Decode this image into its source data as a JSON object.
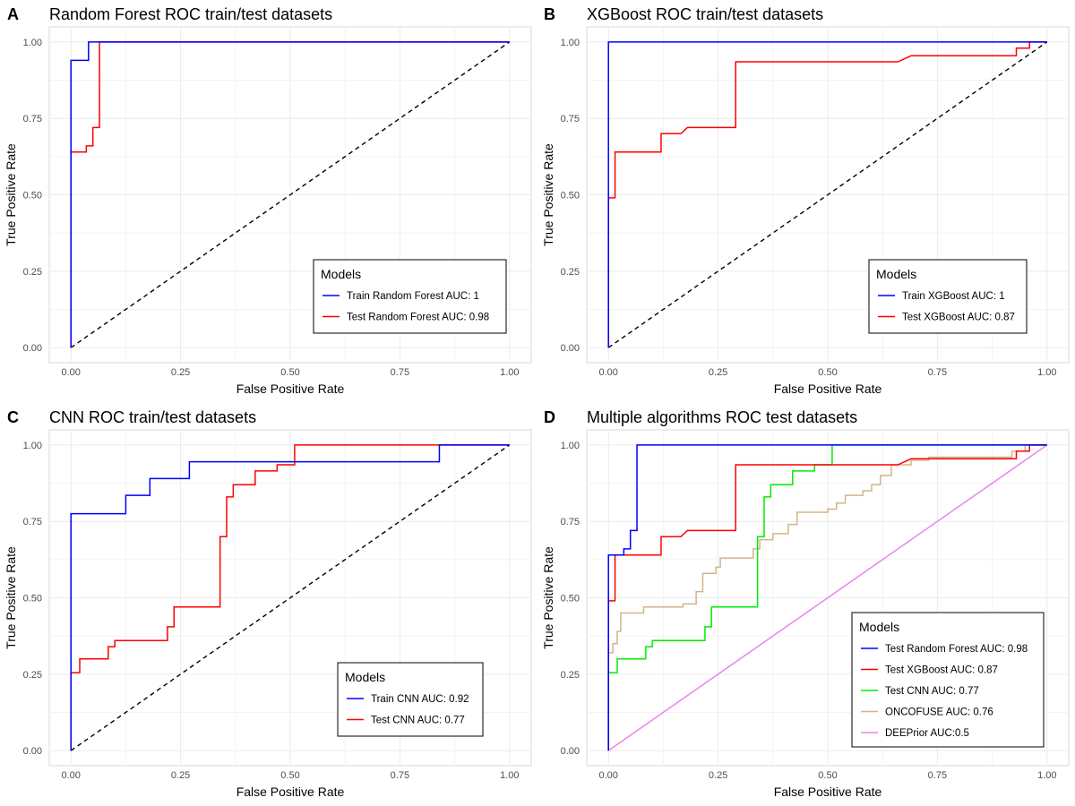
{
  "chart_data": [
    {
      "type": "line",
      "panel_letter": "A",
      "title": "Random Forest ROC train/test datasets",
      "xlabel": "False Positive Rate",
      "ylabel": "True Positive Rate",
      "xlim": [
        0,
        1
      ],
      "ylim": [
        0,
        1
      ],
      "xticks": [
        "0.00",
        "0.25",
        "0.50",
        "0.75",
        "1.00"
      ],
      "yticks": [
        "0.00",
        "0.25",
        "0.50",
        "0.75",
        "1.00"
      ],
      "grid": true,
      "legend_title": "Models",
      "legend_position": "bottom-right",
      "diagonal_reference": true,
      "series": [
        {
          "name": "Train Random Forest  AUC: 1",
          "color": "#0000ff",
          "points": [
            [
              0,
              0
            ],
            [
              0,
              0.94
            ],
            [
              0.04,
              0.94
            ],
            [
              0.04,
              1
            ],
            [
              1,
              1
            ]
          ]
        },
        {
          "name": "Test Random Forest  AUC: 0.98",
          "color": "#ff0000",
          "points": [
            [
              0,
              0
            ],
            [
              0,
              0.64
            ],
            [
              0.035,
              0.64
            ],
            [
              0.035,
              0.66
            ],
            [
              0.05,
              0.66
            ],
            [
              0.05,
              0.72
            ],
            [
              0.065,
              0.72
            ],
            [
              0.065,
              1
            ],
            [
              1,
              1
            ]
          ]
        }
      ]
    },
    {
      "type": "line",
      "panel_letter": "B",
      "title": "XGBoost ROC train/test datasets",
      "xlabel": "False Positive Rate",
      "ylabel": "True Positive Rate",
      "xlim": [
        0,
        1
      ],
      "ylim": [
        0,
        1
      ],
      "xticks": [
        "0.00",
        "0.25",
        "0.50",
        "0.75",
        "1.00"
      ],
      "yticks": [
        "0.00",
        "0.25",
        "0.50",
        "0.75",
        "1.00"
      ],
      "grid": true,
      "legend_title": "Models",
      "legend_position": "bottom-right",
      "diagonal_reference": true,
      "series": [
        {
          "name": "Train XGBoost  AUC: 1",
          "color": "#0000ff",
          "points": [
            [
              0,
              0
            ],
            [
              0,
              1
            ],
            [
              0.96,
              1
            ],
            [
              0.96,
              1
            ],
            [
              1,
              1
            ]
          ]
        },
        {
          "name": "Test XGBoost AUC: 0.87",
          "color": "#ff0000",
          "points": [
            [
              0,
              0
            ],
            [
              0,
              0.49
            ],
            [
              0.015,
              0.49
            ],
            [
              0.015,
              0.64
            ],
            [
              0.12,
              0.64
            ],
            [
              0.12,
              0.7
            ],
            [
              0.165,
              0.7
            ],
            [
              0.18,
              0.72
            ],
            [
              0.29,
              0.72
            ],
            [
              0.29,
              0.935
            ],
            [
              0.66,
              0.935
            ],
            [
              0.69,
              0.955
            ],
            [
              0.93,
              0.955
            ],
            [
              0.93,
              0.98
            ],
            [
              0.96,
              0.98
            ],
            [
              0.96,
              1
            ],
            [
              1,
              1
            ]
          ]
        }
      ]
    },
    {
      "type": "line",
      "panel_letter": "C",
      "title": "CNN ROC train/test datasets",
      "xlabel": "False Positive Rate",
      "ylabel": "True Positive Rate",
      "xlim": [
        0,
        1
      ],
      "ylim": [
        0,
        1
      ],
      "xticks": [
        "0.00",
        "0.25",
        "0.50",
        "0.75",
        "1.00"
      ],
      "yticks": [
        "0.00",
        "0.25",
        "0.50",
        "0.75",
        "1.00"
      ],
      "grid": true,
      "legend_title": "Models",
      "legend_position": "bottom-right",
      "diagonal_reference": true,
      "series": [
        {
          "name": "Train CNN  AUC: 0.92",
          "color": "#0000ff",
          "points": [
            [
              0,
              0
            ],
            [
              0,
              0.775
            ],
            [
              0.125,
              0.775
            ],
            [
              0.125,
              0.835
            ],
            [
              0.18,
              0.835
            ],
            [
              0.18,
              0.89
            ],
            [
              0.27,
              0.89
            ],
            [
              0.27,
              0.945
            ],
            [
              0.84,
              0.945
            ],
            [
              0.84,
              1
            ],
            [
              1,
              1
            ]
          ]
        },
        {
          "name": "Test CNN  AUC: 0.77",
          "color": "#ff0000",
          "points": [
            [
              0,
              0
            ],
            [
              0,
              0.255
            ],
            [
              0.02,
              0.255
            ],
            [
              0.02,
              0.3
            ],
            [
              0.085,
              0.3
            ],
            [
              0.085,
              0.34
            ],
            [
              0.1,
              0.34
            ],
            [
              0.1,
              0.36
            ],
            [
              0.22,
              0.36
            ],
            [
              0.22,
              0.405
            ],
            [
              0.235,
              0.405
            ],
            [
              0.235,
              0.47
            ],
            [
              0.34,
              0.47
            ],
            [
              0.34,
              0.7
            ],
            [
              0.355,
              0.7
            ],
            [
              0.355,
              0.83
            ],
            [
              0.37,
              0.83
            ],
            [
              0.37,
              0.87
            ],
            [
              0.42,
              0.87
            ],
            [
              0.42,
              0.915
            ],
            [
              0.47,
              0.915
            ],
            [
              0.47,
              0.935
            ],
            [
              0.51,
              0.935
            ],
            [
              0.51,
              1
            ],
            [
              1,
              1
            ]
          ]
        }
      ]
    },
    {
      "type": "line",
      "panel_letter": "D",
      "title": "Multiple algorithms ROC test datasets",
      "xlabel": "False Positive Rate",
      "ylabel": "True Positive Rate",
      "xlim": [
        0,
        1
      ],
      "ylim": [
        0,
        1
      ],
      "xticks": [
        "0.00",
        "0.25",
        "0.50",
        "0.75",
        "1.00"
      ],
      "yticks": [
        "0.00",
        "0.25",
        "0.50",
        "0.75",
        "1.00"
      ],
      "grid": true,
      "legend_title": "Models",
      "legend_position": "bottom-right",
      "diagonal_reference": false,
      "series": [
        {
          "name": "Test Random Forest  AUC: 0.98",
          "color": "#0000ff",
          "points": [
            [
              0,
              0
            ],
            [
              0,
              0.64
            ],
            [
              0.035,
              0.64
            ],
            [
              0.035,
              0.66
            ],
            [
              0.05,
              0.66
            ],
            [
              0.05,
              0.72
            ],
            [
              0.065,
              0.72
            ],
            [
              0.065,
              1
            ],
            [
              1,
              1
            ]
          ]
        },
        {
          "name": "Test XGBoost AUC: 0.87",
          "color": "#ff0000",
          "points": [
            [
              0,
              0
            ],
            [
              0,
              0.49
            ],
            [
              0.015,
              0.49
            ],
            [
              0.015,
              0.64
            ],
            [
              0.12,
              0.64
            ],
            [
              0.12,
              0.7
            ],
            [
              0.165,
              0.7
            ],
            [
              0.18,
              0.72
            ],
            [
              0.29,
              0.72
            ],
            [
              0.29,
              0.935
            ],
            [
              0.66,
              0.935
            ],
            [
              0.69,
              0.955
            ],
            [
              0.93,
              0.955
            ],
            [
              0.93,
              0.98
            ],
            [
              0.96,
              0.98
            ],
            [
              0.96,
              1
            ],
            [
              1,
              1
            ]
          ]
        },
        {
          "name": "Test CNN  AUC: 0.77",
          "color": "#00ee00",
          "points": [
            [
              0,
              0
            ],
            [
              0,
              0.255
            ],
            [
              0.02,
              0.255
            ],
            [
              0.02,
              0.3
            ],
            [
              0.085,
              0.3
            ],
            [
              0.085,
              0.34
            ],
            [
              0.1,
              0.34
            ],
            [
              0.1,
              0.36
            ],
            [
              0.22,
              0.36
            ],
            [
              0.22,
              0.405
            ],
            [
              0.235,
              0.405
            ],
            [
              0.235,
              0.47
            ],
            [
              0.34,
              0.47
            ],
            [
              0.34,
              0.7
            ],
            [
              0.355,
              0.7
            ],
            [
              0.355,
              0.83
            ],
            [
              0.37,
              0.83
            ],
            [
              0.37,
              0.87
            ],
            [
              0.42,
              0.87
            ],
            [
              0.42,
              0.915
            ],
            [
              0.47,
              0.915
            ],
            [
              0.47,
              0.935
            ],
            [
              0.51,
              0.935
            ],
            [
              0.51,
              1
            ],
            [
              1,
              1
            ]
          ]
        },
        {
          "name": "ONCOFUSE AUC: 0.76",
          "color": "#d2b48c",
          "points": [
            [
              0,
              0
            ],
            [
              0,
              0.32
            ],
            [
              0.01,
              0.32
            ],
            [
              0.01,
              0.35
            ],
            [
              0.02,
              0.35
            ],
            [
              0.02,
              0.39
            ],
            [
              0.028,
              0.39
            ],
            [
              0.028,
              0.45
            ],
            [
              0.08,
              0.45
            ],
            [
              0.08,
              0.47
            ],
            [
              0.17,
              0.47
            ],
            [
              0.17,
              0.48
            ],
            [
              0.2,
              0.48
            ],
            [
              0.2,
              0.52
            ],
            [
              0.215,
              0.52
            ],
            [
              0.215,
              0.58
            ],
            [
              0.245,
              0.58
            ],
            [
              0.245,
              0.6
            ],
            [
              0.255,
              0.6
            ],
            [
              0.255,
              0.63
            ],
            [
              0.33,
              0.63
            ],
            [
              0.33,
              0.66
            ],
            [
              0.345,
              0.66
            ],
            [
              0.345,
              0.69
            ],
            [
              0.375,
              0.69
            ],
            [
              0.375,
              0.71
            ],
            [
              0.41,
              0.71
            ],
            [
              0.41,
              0.74
            ],
            [
              0.43,
              0.74
            ],
            [
              0.43,
              0.78
            ],
            [
              0.5,
              0.78
            ],
            [
              0.5,
              0.79
            ],
            [
              0.52,
              0.79
            ],
            [
              0.52,
              0.81
            ],
            [
              0.54,
              0.81
            ],
            [
              0.54,
              0.835
            ],
            [
              0.58,
              0.835
            ],
            [
              0.58,
              0.85
            ],
            [
              0.6,
              0.85
            ],
            [
              0.6,
              0.87
            ],
            [
              0.62,
              0.87
            ],
            [
              0.62,
              0.9
            ],
            [
              0.645,
              0.9
            ],
            [
              0.645,
              0.935
            ],
            [
              0.69,
              0.935
            ],
            [
              0.69,
              0.95
            ],
            [
              0.73,
              0.95
            ],
            [
              0.73,
              0.96
            ],
            [
              0.92,
              0.96
            ],
            [
              0.92,
              0.98
            ],
            [
              0.95,
              0.98
            ],
            [
              0.95,
              1
            ],
            [
              1,
              1
            ]
          ]
        },
        {
          "name": "DEEPrior AUC:0.5",
          "color": "#ee82ee",
          "points": [
            [
              0,
              0
            ],
            [
              1,
              1
            ]
          ]
        }
      ]
    }
  ]
}
